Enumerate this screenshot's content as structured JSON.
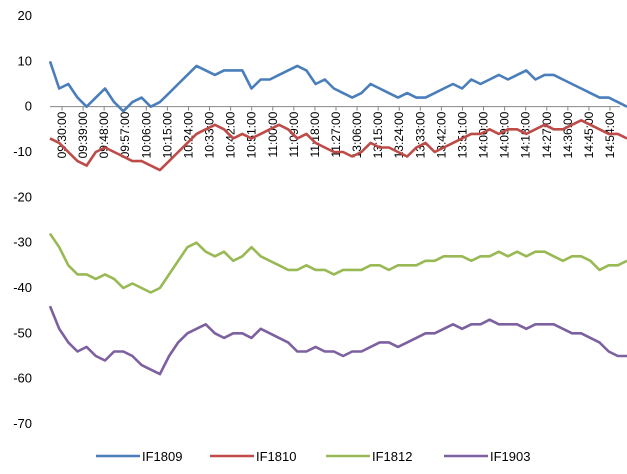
{
  "chart_data": {
    "type": "line",
    "title": "",
    "xlabel": "",
    "ylabel": "",
    "ylim": [
      -70,
      20
    ],
    "yticks": [
      20,
      10,
      0,
      -10,
      -20,
      -30,
      -40,
      -50,
      -60,
      -70
    ],
    "xtick_labels": [
      "09:30:00",
      "09:39:00",
      "09:48:00",
      "09:57:00",
      "10:06:00",
      "10:15:00",
      "10:24:00",
      "10:33:00",
      "10:42:00",
      "10:51:00",
      "11:00:00",
      "11:09:00",
      "11:18:00",
      "11:27:00",
      "13:06:00",
      "13:15:00",
      "13:24:00",
      "13:33:00",
      "13:42:00",
      "13:51:00",
      "14:00:00",
      "14:09:00",
      "14:18:00",
      "14:27:00",
      "14:36:00",
      "14:45:00",
      "14:54:00"
    ],
    "grid": false,
    "legend": "bottom",
    "series": [
      {
        "name": "IF1809",
        "color": "#4a7ebb",
        "values": [
          10,
          4,
          5,
          2,
          0,
          2,
          4,
          1,
          -1,
          1,
          2,
          0,
          1,
          3,
          5,
          7,
          9,
          8,
          7,
          8,
          8,
          8,
          4,
          6,
          6,
          7,
          8,
          9,
          8,
          5,
          6,
          4,
          3,
          2,
          3,
          5,
          4,
          3,
          2,
          3,
          2,
          2,
          3,
          4,
          5,
          4,
          6,
          5,
          6,
          7,
          6,
          7,
          8,
          6,
          7,
          7,
          6,
          5,
          4,
          3,
          2,
          2,
          1,
          0
        ]
      },
      {
        "name": "IF1810",
        "color": "#be4b48",
        "values": [
          -7,
          -8,
          -10,
          -12,
          -13,
          -10,
          -9,
          -10,
          -11,
          -12,
          -12,
          -13,
          -14,
          -12,
          -10,
          -8,
          -6,
          -5,
          -4,
          -5,
          -7,
          -6,
          -7,
          -6,
          -5,
          -4,
          -5,
          -7,
          -6,
          -8,
          -9,
          -10,
          -10,
          -11,
          -10,
          -8,
          -9,
          -9,
          -10,
          -11,
          -9,
          -8,
          -10,
          -9,
          -8,
          -7,
          -6,
          -6,
          -5,
          -6,
          -5,
          -5,
          -6,
          -5,
          -4,
          -5,
          -5,
          -4,
          -3,
          -4,
          -5,
          -6,
          -6,
          -7
        ]
      },
      {
        "name": "IF1812",
        "color": "#98b954",
        "values": [
          -28,
          -31,
          -35,
          -37,
          -37,
          -38,
          -37,
          -38,
          -40,
          -39,
          -40,
          -41,
          -40,
          -37,
          -34,
          -31,
          -30,
          -32,
          -33,
          -32,
          -34,
          -33,
          -31,
          -33,
          -34,
          -35,
          -36,
          -36,
          -35,
          -36,
          -36,
          -37,
          -36,
          -36,
          -36,
          -35,
          -35,
          -36,
          -35,
          -35,
          -35,
          -34,
          -34,
          -33,
          -33,
          -33,
          -34,
          -33,
          -33,
          -32,
          -33,
          -32,
          -33,
          -32,
          -32,
          -33,
          -34,
          -33,
          -33,
          -34,
          -36,
          -35,
          -35,
          -34
        ]
      },
      {
        "name": "IF1903",
        "color": "#7d60a0",
        "values": [
          -44,
          -49,
          -52,
          -54,
          -53,
          -55,
          -56,
          -54,
          -54,
          -55,
          -57,
          -58,
          -59,
          -55,
          -52,
          -50,
          -49,
          -48,
          -50,
          -51,
          -50,
          -50,
          -51,
          -49,
          -50,
          -51,
          -52,
          -54,
          -54,
          -53,
          -54,
          -54,
          -55,
          -54,
          -54,
          -53,
          -52,
          -52,
          -53,
          -52,
          -51,
          -50,
          -50,
          -49,
          -48,
          -49,
          -48,
          -48,
          -47,
          -48,
          -48,
          -48,
          -49,
          -48,
          -48,
          -48,
          -49,
          -50,
          -50,
          -51,
          -52,
          -54,
          -55,
          -55
        ]
      }
    ]
  }
}
